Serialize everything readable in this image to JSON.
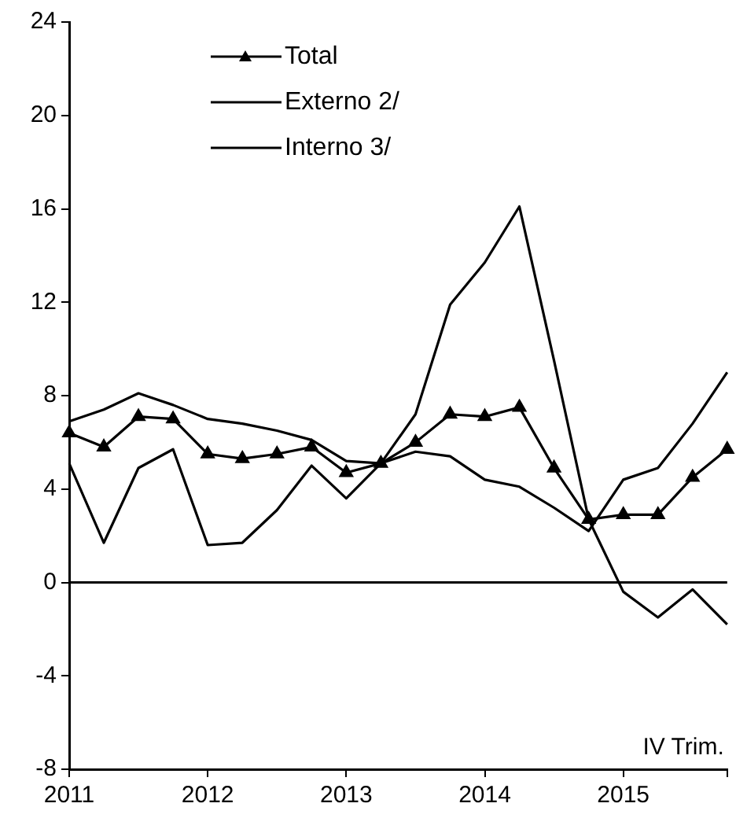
{
  "chart_data": {
    "type": "line",
    "categories": [
      "2011",
      null,
      null,
      null,
      "2012",
      null,
      null,
      null,
      "2013",
      null,
      null,
      null,
      "2014",
      null,
      null,
      null,
      "2015",
      null,
      null,
      null
    ],
    "series": [
      {
        "name": "Total",
        "color": "#000000",
        "marker": "triangle",
        "values": [
          6.4,
          5.8,
          7.1,
          7.0,
          5.5,
          5.3,
          5.5,
          5.8,
          4.7,
          5.1,
          6.0,
          7.2,
          7.1,
          7.5,
          4.9,
          2.7,
          2.9,
          2.9,
          4.5,
          5.7
        ]
      },
      {
        "name": "Externo 2/",
        "color": "#000000",
        "marker": "none",
        "values": [
          5.1,
          1.7,
          4.9,
          5.7,
          1.6,
          1.7,
          3.1,
          5.0,
          3.6,
          5.1,
          7.2,
          11.9,
          13.7,
          16.1,
          9.5,
          2.7,
          -0.4,
          -1.5,
          -0.3,
          -1.8
        ]
      },
      {
        "name": "Interno 3/",
        "color": "#000000",
        "marker": "none",
        "values": [
          6.9,
          7.4,
          8.1,
          7.6,
          7.0,
          6.8,
          6.5,
          6.1,
          5.2,
          5.1,
          5.6,
          5.4,
          4.4,
          4.1,
          3.2,
          2.2,
          4.4,
          4.9,
          6.8,
          9.0
        ]
      }
    ],
    "ylim": [
      -8,
      24
    ],
    "yticks": [
      -8,
      -4,
      0,
      4,
      8,
      12,
      16,
      20,
      24
    ],
    "ref_lines": [
      {
        "axis": "y",
        "value": 0,
        "color": "#000000"
      }
    ],
    "annotations": [
      "IV Trim."
    ],
    "legend": "top left",
    "grid": false
  }
}
